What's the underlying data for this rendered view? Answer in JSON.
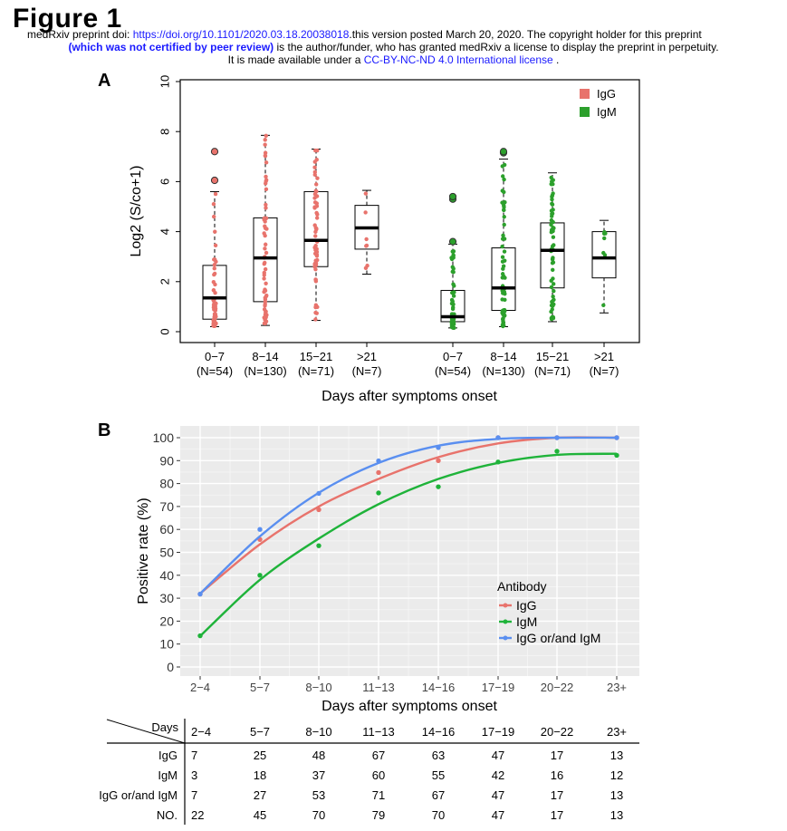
{
  "figure_title": "Figure 1",
  "header": {
    "line1_prefix": "medRxiv preprint doi: ",
    "line1_doi": "https://doi.org/10.1101/2020.03.18.20038018",
    "line1_suffix": ".this version posted March 20, 2020. The copyright holder for this preprint",
    "line2_bold": "(which was not certified by peer review)",
    "line2_suffix": " is the author/funder, who has granted medRxiv a license to display the preprint in perpetuity.",
    "line3_prefix": "It is made available under a ",
    "line3_license": "CC-BY-NC-ND 4.0 International license",
    "line3_suffix": " ."
  },
  "panel_a_label": "A",
  "panel_b_label": "B",
  "chart_data": [
    {
      "type": "box",
      "ylabel": "Log2 (S/co+1)",
      "xlabel": "Days after symptoms onset",
      "ylim": [
        0,
        10
      ],
      "yticks": [
        0,
        2,
        4,
        6,
        8,
        10
      ],
      "grid": false,
      "legend_position": "top-right",
      "legend": [
        {
          "name": "IgG",
          "color": "#e8736c"
        },
        {
          "name": "IgM",
          "color": "#2ca02c"
        }
      ],
      "groups": [
        {
          "antibody": "IgG",
          "label": "0−7",
          "n_label": "(N=54)",
          "q1": 0.5,
          "median": 1.35,
          "q3": 2.65,
          "whisker_low": 0.2,
          "whisker_high": 5.6,
          "outliers": [
            6.05,
            7.2
          ]
        },
        {
          "antibody": "IgG",
          "label": "8−14",
          "n_label": "(N=130)",
          "q1": 1.2,
          "median": 2.95,
          "q3": 4.55,
          "whisker_low": 0.25,
          "whisker_high": 7.85,
          "outliers": []
        },
        {
          "antibody": "IgG",
          "label": "15−21",
          "n_label": "(N=71)",
          "q1": 2.6,
          "median": 3.65,
          "q3": 5.6,
          "whisker_low": 0.45,
          "whisker_high": 7.3,
          "outliers": []
        },
        {
          "antibody": "IgG",
          "label": ">21",
          "n_label": "(N=7)",
          "q1": 3.3,
          "median": 4.15,
          "q3": 5.05,
          "whisker_low": 2.3,
          "whisker_high": 5.65,
          "outliers": []
        },
        {
          "antibody": "IgM",
          "label": "0−7",
          "n_label": "(N=54)",
          "q1": 0.4,
          "median": 0.6,
          "q3": 1.65,
          "whisker_low": 0.15,
          "whisker_high": 3.5,
          "outliers": [
            3.6,
            5.3,
            5.4
          ]
        },
        {
          "antibody": "IgM",
          "label": "8−14",
          "n_label": "(N=130)",
          "q1": 0.85,
          "median": 1.75,
          "q3": 3.35,
          "whisker_low": 0.2,
          "whisker_high": 6.9,
          "outliers": [
            7.15,
            7.2
          ]
        },
        {
          "antibody": "IgM",
          "label": "15−21",
          "n_label": "(N=71)",
          "q1": 1.75,
          "median": 3.25,
          "q3": 4.35,
          "whisker_low": 0.4,
          "whisker_high": 6.35,
          "outliers": []
        },
        {
          "antibody": "IgM",
          "label": ">21",
          "n_label": "(N=7)",
          "q1": 2.15,
          "median": 2.95,
          "q3": 4.0,
          "whisker_low": 0.75,
          "whisker_high": 4.45,
          "outliers": []
        }
      ]
    },
    {
      "type": "line",
      "ylabel": "Positive rate (%)",
      "xlabel": "Days after symptoms onset",
      "categories": [
        "2−4",
        "5−7",
        "8−10",
        "11−13",
        "14−16",
        "17−19",
        "20−22",
        "23+"
      ],
      "ylim": [
        0,
        100
      ],
      "yticks": [
        0,
        10,
        20,
        30,
        40,
        50,
        60,
        70,
        80,
        90,
        100
      ],
      "grid": true,
      "legend_title": "Antibody",
      "legend_position": "bottom-right",
      "series": [
        {
          "name": "IgG",
          "color": "#e8736c",
          "values": [
            31.8,
            55.6,
            68.6,
            84.8,
            90.0,
            100,
            100,
            100
          ],
          "curve": [
            32,
            53.5,
            70,
            82,
            91.5,
            97.5,
            100,
            100
          ]
        },
        {
          "name": "IgM",
          "color": "#1fb33a",
          "values": [
            13.6,
            40.0,
            52.9,
            75.9,
            78.6,
            89.4,
            94.1,
            92.3
          ],
          "curve": [
            13.5,
            38,
            56,
            71,
            82,
            89,
            92.5,
            93
          ]
        },
        {
          "name": "IgG or/and IgM",
          "color": "#5a8ff0",
          "values": [
            31.8,
            60.0,
            75.7,
            89.9,
            95.7,
            100,
            100,
            100
          ],
          "curve": [
            32,
            57,
            76,
            89,
            96.5,
            99.5,
            100,
            100
          ]
        }
      ]
    }
  ],
  "table": {
    "corner_top": "Days",
    "columns": [
      "2−4",
      "5−7",
      "8−10",
      "11−13",
      "14−16",
      "17−19",
      "20−22",
      "23+"
    ],
    "rows": [
      {
        "label": "IgG",
        "values": [
          "7",
          "25",
          "48",
          "67",
          "63",
          "47",
          "17",
          "13"
        ]
      },
      {
        "label": "IgM",
        "values": [
          "3",
          "18",
          "37",
          "60",
          "55",
          "42",
          "16",
          "12"
        ]
      },
      {
        "label": "IgG or/and IgM",
        "values": [
          "7",
          "27",
          "53",
          "71",
          "67",
          "47",
          "17",
          "13"
        ]
      },
      {
        "label": "NO.",
        "values": [
          "22",
          "45",
          "70",
          "79",
          "70",
          "47",
          "17",
          "13"
        ]
      }
    ]
  }
}
